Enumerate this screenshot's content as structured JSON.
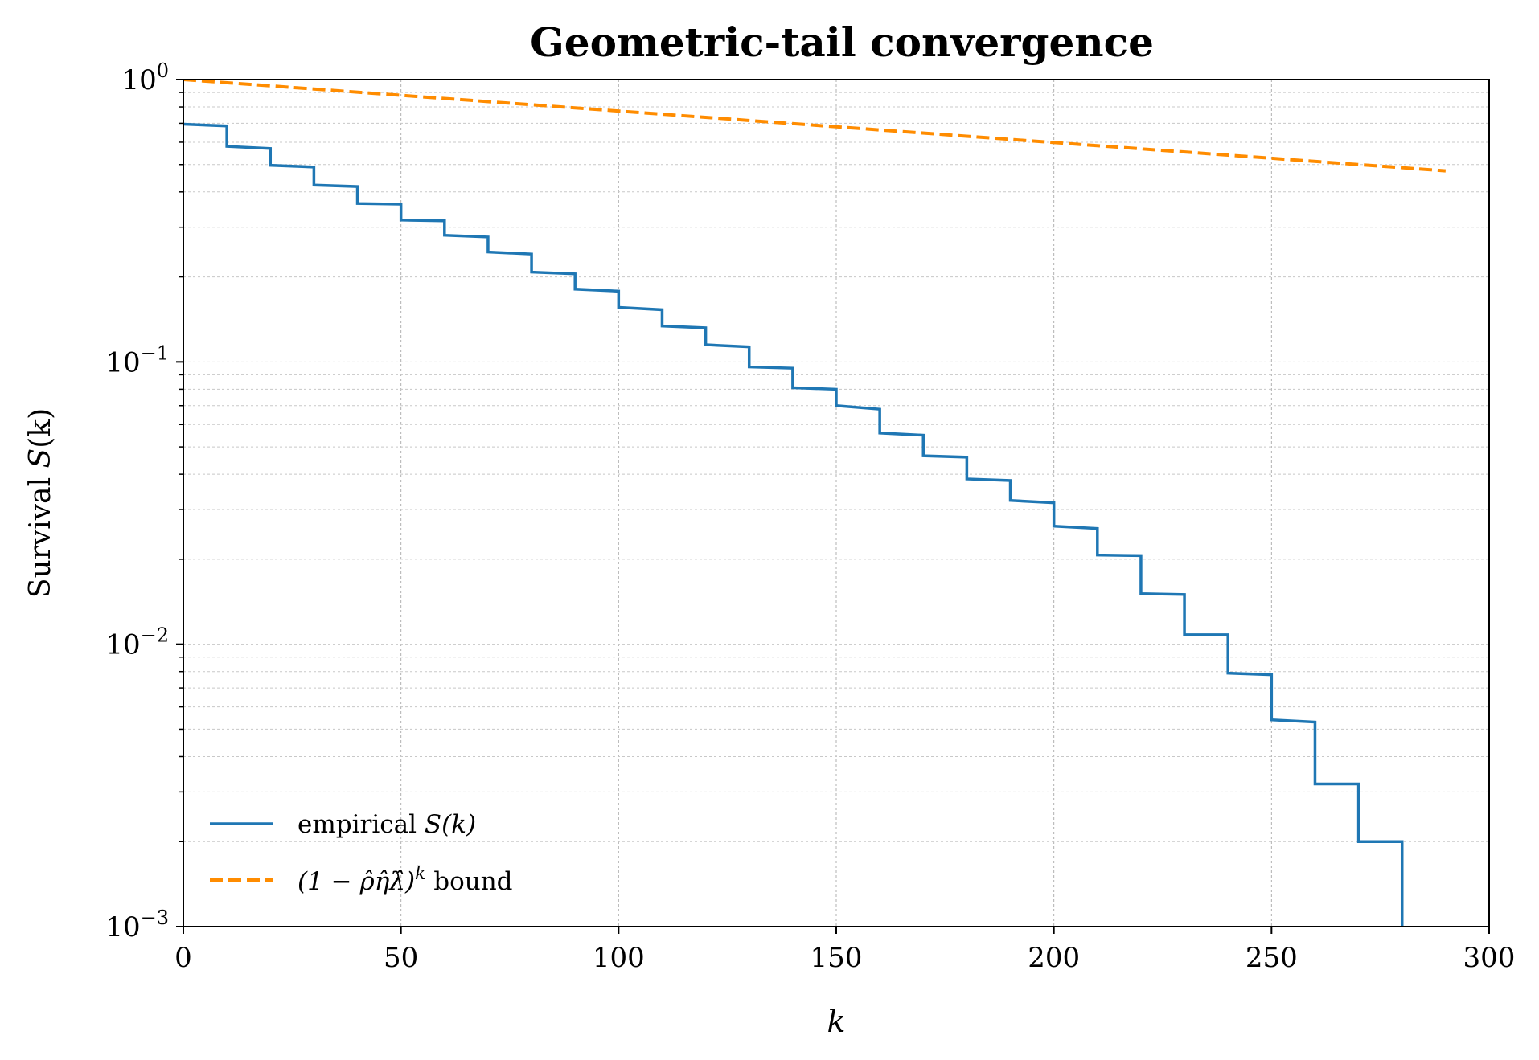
{
  "chart_data": {
    "type": "line",
    "title": "Geometric-tail convergence",
    "xlabel": "k",
    "ylabel": {
      "prefix": "Survival ",
      "var": "S",
      "suffix": "(k)"
    },
    "xlim": [
      0,
      300
    ],
    "ylim": [
      0.001,
      1
    ],
    "yscale": "log",
    "grid": true,
    "legend_position": "lower-left",
    "x_ticks": [
      0,
      50,
      100,
      150,
      200,
      250,
      300
    ],
    "x_tick_labels": [
      "0",
      "50",
      "100",
      "150",
      "200",
      "250",
      "300"
    ],
    "y_ticks": [
      1,
      0.1,
      0.01,
      0.001
    ],
    "y_tick_labels": [
      {
        "base": "10",
        "exp": "0"
      },
      {
        "base": "10",
        "exp": "−1"
      },
      {
        "base": "10",
        "exp": "−2"
      },
      {
        "base": "10",
        "exp": "−3"
      }
    ],
    "series": [
      {
        "name": "empirical S(k)",
        "legend_text": "empirical ",
        "legend_math": "S(k)",
        "style": "step",
        "color": "#1f77b4",
        "x": [
          0,
          10,
          20,
          30,
          40,
          50,
          60,
          70,
          80,
          90,
          100,
          110,
          120,
          130,
          140,
          150,
          160,
          170,
          180,
          190,
          200,
          210,
          220,
          230,
          240,
          250,
          260,
          270,
          280
        ],
        "y_start": [
          0.695,
          0.58,
          0.497,
          0.423,
          0.364,
          0.318,
          0.281,
          0.245,
          0.208,
          0.181,
          0.156,
          0.134,
          0.115,
          0.096,
          0.081,
          0.07,
          0.056,
          0.0465,
          0.0385,
          0.0323,
          0.0262,
          0.0207,
          0.0151,
          0.0108,
          0.0079,
          0.0054,
          0.0032,
          0.002,
          0.001
        ],
        "y_end": [
          0.685,
          0.57,
          0.49,
          0.418,
          0.362,
          0.316,
          0.277,
          0.241,
          0.205,
          0.178,
          0.153,
          0.132,
          0.113,
          0.095,
          0.08,
          0.068,
          0.055,
          0.046,
          0.038,
          0.0317,
          0.0257,
          0.0206,
          0.015,
          0.0108,
          0.0078,
          0.0053,
          0.0032,
          0.002,
          0.001
        ]
      },
      {
        "name": "(1 − ρ̂η̂λ̂)^k bound",
        "legend_math": "(1 − ρ̂η̂λ̂)",
        "legend_exp": "k",
        "legend_text": " bound",
        "style": "dashed",
        "color": "#ff8c00",
        "x": [
          0,
          290
        ],
        "y": [
          1.0,
          0.475
        ]
      }
    ]
  }
}
